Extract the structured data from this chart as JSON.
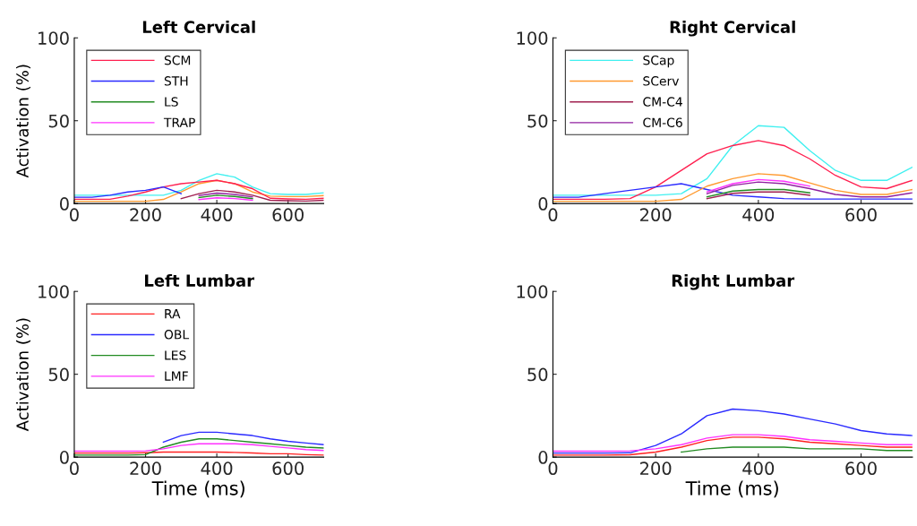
{
  "chart_data": [
    {
      "type": "line",
      "title": "Left Cervical",
      "ylabel": "Activation (%)",
      "xlim": [
        0,
        700
      ],
      "ylim": [
        0,
        100
      ],
      "xticks": [
        0,
        200,
        400,
        600
      ],
      "yticks": [
        0,
        50,
        100
      ],
      "legend": "top left",
      "grid": false,
      "x": [
        0,
        50,
        100,
        150,
        200,
        250,
        300,
        350,
        400,
        450,
        500,
        550,
        600,
        650,
        700
      ],
      "series": [
        {
          "color": "#40f0f0",
          "values": [
            5,
            5,
            5,
            5,
            5,
            5,
            8,
            14,
            18,
            16,
            10,
            6,
            5.5,
            5.5,
            6.5
          ]
        },
        {
          "color": "#ff9a30",
          "values": [
            1.4,
            1.4,
            1.4,
            1.4,
            1.4,
            2.5,
            7,
            12,
            14,
            12,
            7,
            4.5,
            4.2,
            4.2,
            4.8
          ]
        },
        {
          "name": "SCM",
          "color": "#ff2050",
          "values": [
            2.6,
            2.6,
            2.6,
            4.5,
            7,
            10,
            12,
            13,
            14,
            12,
            9,
            3.2,
            2.8,
            2.6,
            3.2
          ]
        },
        {
          "name": "STH",
          "color": "#2a2aff",
          "values": [
            3.8,
            3.8,
            5,
            7,
            8,
            10,
            6,
            null,
            null,
            null,
            null,
            null,
            null,
            null,
            null
          ]
        },
        {
          "color": "#a02050",
          "values": [
            null,
            null,
            null,
            null,
            null,
            null,
            3,
            6,
            8,
            7,
            5,
            2,
            1.7,
            1.5,
            2
          ]
        },
        {
          "color": "#9020a0",
          "values": [
            null,
            null,
            null,
            null,
            null,
            null,
            null,
            4.8,
            6.3,
            5.5,
            4,
            null,
            null,
            null,
            null
          ]
        },
        {
          "name": "LS",
          "color": "#228b22",
          "values": [
            null,
            null,
            null,
            null,
            null,
            null,
            null,
            3.6,
            5,
            4.3,
            3,
            null,
            null,
            null,
            null
          ]
        },
        {
          "name": "TRAP",
          "color": "#ff30ff",
          "values": [
            null,
            null,
            null,
            null,
            null,
            null,
            null,
            2.4,
            3.5,
            3,
            2,
            null,
            null,
            null,
            null
          ]
        }
      ]
    },
    {
      "type": "line",
      "title": "Right Cervical",
      "xlim": [
        0,
        700
      ],
      "ylim": [
        0,
        100
      ],
      "xticks": [
        0,
        200,
        400,
        600
      ],
      "yticks": [
        0,
        50,
        100
      ],
      "legend": "top left",
      "grid": false,
      "x": [
        0,
        50,
        100,
        150,
        200,
        250,
        300,
        350,
        400,
        450,
        500,
        550,
        600,
        650,
        700
      ],
      "series": [
        {
          "name": "SCap",
          "color": "#40f0f0",
          "values": [
            5,
            5,
            5,
            5,
            5,
            6,
            15,
            35,
            47,
            46,
            32,
            20,
            14,
            14,
            22
          ]
        },
        {
          "color": "#ff2050",
          "values": [
            2.6,
            2.6,
            2.6,
            3,
            10,
            20,
            30,
            35,
            38,
            35,
            27,
            17,
            10,
            9,
            14
          ]
        },
        {
          "color": "#2a2aff",
          "values": [
            3.8,
            3.8,
            6,
            8,
            10,
            12,
            8.5,
            5,
            4,
            3,
            2.7,
            2.7,
            2.7,
            2.7,
            2.7
          ]
        },
        {
          "name": "SCerv",
          "color": "#ff9a30",
          "values": [
            1.4,
            1.4,
            1.4,
            1.4,
            1.4,
            2.5,
            10.5,
            15,
            18,
            17,
            12.5,
            8,
            5.5,
            5.5,
            8.5
          ]
        },
        {
          "color": "#ff30ff",
          "values": [
            null,
            null,
            null,
            null,
            null,
            null,
            7,
            12,
            14.5,
            13.5,
            10.5,
            null,
            null,
            null,
            null
          ]
        },
        {
          "name": "CM-C4",
          "color": "#a02050",
          "values": [
            null,
            null,
            null,
            null,
            null,
            null,
            3,
            6.2,
            7,
            7,
            5,
            null,
            null,
            null,
            null
          ]
        },
        {
          "name": "CM-C6",
          "color": "#9020a0",
          "values": [
            null,
            null,
            null,
            null,
            null,
            null,
            6,
            11,
            13,
            12,
            9,
            5.5,
            4,
            4,
            6.5
          ]
        },
        {
          "color": "#228b22",
          "values": [
            null,
            null,
            null,
            null,
            null,
            null,
            4,
            7.5,
            8.5,
            8.5,
            6.5,
            null,
            null,
            null,
            null
          ]
        }
      ]
    },
    {
      "type": "line",
      "title": "Left Lumbar",
      "xlabel": "Time (ms)",
      "ylabel": "Activation (%)",
      "xlim": [
        0,
        700
      ],
      "ylim": [
        0,
        100
      ],
      "xticks": [
        0,
        200,
        400,
        600
      ],
      "yticks": [
        0,
        50,
        100
      ],
      "legend": "top left",
      "grid": false,
      "x": [
        0,
        50,
        100,
        150,
        200,
        250,
        300,
        350,
        400,
        450,
        500,
        550,
        600,
        650,
        700
      ],
      "series": [
        {
          "name": "RA",
          "color": "#ff2020",
          "values": [
            2.4,
            2.4,
            2.4,
            2.4,
            2.6,
            3,
            3,
            3,
            3,
            2.8,
            2.5,
            2,
            2,
            1.5,
            1.2
          ]
        },
        {
          "name": "OBL",
          "color": "#2a2aff",
          "values": [
            null,
            null,
            null,
            null,
            null,
            9,
            13,
            15,
            15,
            14,
            13,
            11,
            9.5,
            8.5,
            7.5
          ]
        },
        {
          "name": "LES",
          "color": "#228b22",
          "values": [
            1.2,
            1.2,
            1.2,
            1.2,
            1.5,
            6,
            9,
            11,
            11,
            10,
            9,
            8,
            7,
            6,
            5.5
          ]
        },
        {
          "name": "LMF",
          "color": "#ff30ff",
          "values": [
            3.6,
            3.6,
            3.6,
            3.6,
            3.8,
            5,
            7,
            8,
            8,
            8,
            7.5,
            6.5,
            5.5,
            4.5,
            4
          ]
        }
      ]
    },
    {
      "type": "line",
      "title": "Right Lumbar",
      "xlabel": "Time (ms)",
      "xlim": [
        0,
        700
      ],
      "ylim": [
        0,
        100
      ],
      "xticks": [
        0,
        200,
        400,
        600
      ],
      "yticks": [
        0,
        50,
        100
      ],
      "grid": false,
      "x": [
        0,
        50,
        100,
        150,
        200,
        250,
        300,
        350,
        400,
        450,
        500,
        550,
        600,
        650,
        700
      ],
      "series": [
        {
          "color": "#ff2020",
          "values": [
            1.2,
            1.2,
            1.2,
            1.4,
            3,
            6,
            10,
            12,
            12,
            11,
            9,
            8,
            7,
            6,
            6
          ]
        },
        {
          "color": "#2a2aff",
          "values": [
            2.4,
            2.4,
            2.4,
            2.6,
            7,
            14,
            25,
            29,
            28,
            26,
            23,
            20,
            16,
            14,
            13
          ]
        },
        {
          "color": "#228b22",
          "values": [
            null,
            null,
            null,
            null,
            null,
            3,
            5,
            6,
            6,
            6,
            5,
            5,
            5,
            4,
            4
          ]
        },
        {
          "color": "#ff30ff",
          "values": [
            3.6,
            3.6,
            3.6,
            3.8,
            5,
            7.5,
            11.5,
            13.5,
            13.5,
            12.5,
            10.5,
            9.5,
            8.5,
            7.5,
            7.5
          ]
        }
      ]
    }
  ]
}
